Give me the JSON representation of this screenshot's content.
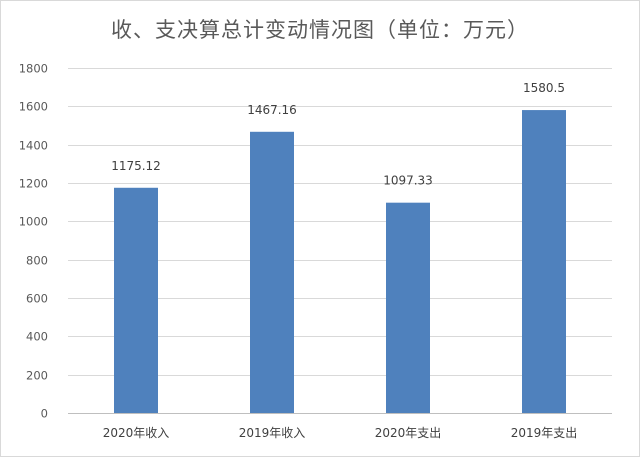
{
  "chart_data": {
    "type": "bar",
    "title": "收、支决算总计变动情况图（单位：万元）",
    "categories": [
      "2020年收入",
      "2019年收入",
      "2020年支出",
      "2019年支出"
    ],
    "values": [
      1175.12,
      1467.16,
      1097.33,
      1580.5
    ],
    "data_labels": [
      "1175.12",
      "1467.16",
      "1097.33",
      "1580.5"
    ],
    "ylim": [
      0,
      1800
    ],
    "yticks": [
      0,
      200,
      400,
      600,
      800,
      1000,
      1200,
      1400,
      1600,
      1800
    ],
    "grid": true,
    "legend": "none",
    "bar_color": "#4f81bd"
  }
}
